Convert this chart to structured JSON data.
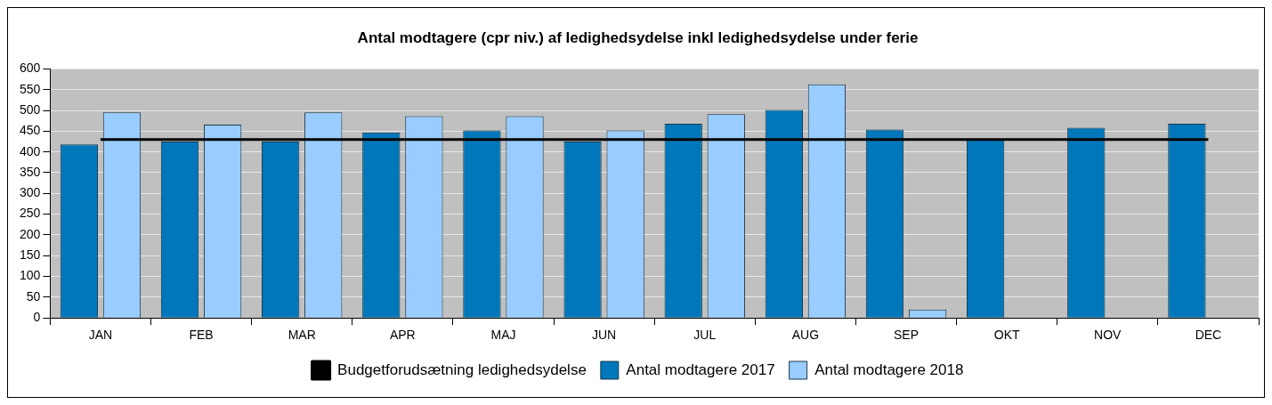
{
  "chart_data": {
    "type": "bar",
    "title": "Antal modtagere (cpr niv.) af ledighedsydelse inkl ledighedsydelse under ferie",
    "categories": [
      "JAN",
      "FEB",
      "MAR",
      "APR",
      "MAJ",
      "JUN",
      "JUL",
      "AUG",
      "SEP",
      "OKT",
      "NOV",
      "DEC"
    ],
    "series": [
      {
        "name": "Antal modtagere 2017",
        "color": "#0077bb",
        "values": [
          418,
          425,
          425,
          447,
          452,
          425,
          468,
          501,
          454,
          430,
          458,
          468
        ]
      },
      {
        "name": "Antal modtagere 2018",
        "color": "#99ccff",
        "values": [
          495,
          466,
          495,
          486,
          486,
          452,
          491,
          563,
          20,
          null,
          null,
          null
        ]
      },
      {
        "name": "Budgetforudsætning ledighedsydelse",
        "type": "line",
        "color": "#000000",
        "values": [
          430,
          430,
          430,
          430,
          430,
          430,
          430,
          430,
          430,
          430,
          430,
          430
        ]
      }
    ],
    "ylim": [
      0,
      600
    ],
    "yticks": [
      0,
      50,
      100,
      150,
      200,
      250,
      300,
      350,
      400,
      450,
      500,
      550,
      600
    ],
    "grid": "y",
    "legend": "bottom",
    "marker": "none"
  }
}
